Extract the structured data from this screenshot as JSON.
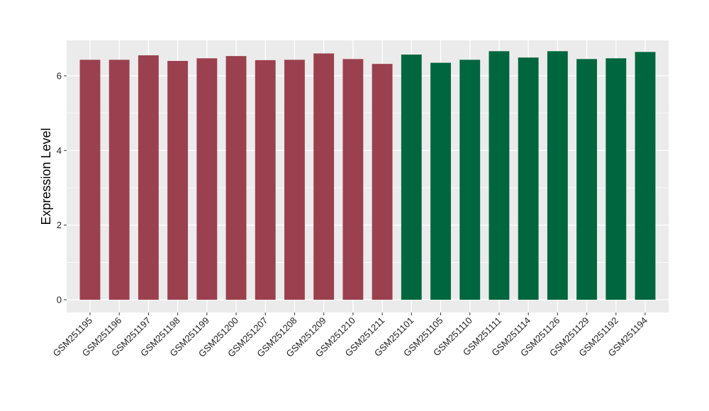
{
  "chart_data": {
    "type": "bar",
    "title": "",
    "xlabel": "",
    "ylabel": "Expression Level",
    "ylim": [
      0,
      6.95
    ],
    "yticks": [
      0,
      2,
      4,
      6
    ],
    "grid": true,
    "legend": "none",
    "categories": [
      "GSM251195",
      "GSM251196",
      "GSM251197",
      "GSM251198",
      "GSM251199",
      "GSM251200",
      "GSM251207",
      "GSM251208",
      "GSM251209",
      "GSM251210",
      "GSM251211",
      "GSM251101",
      "GSM251105",
      "GSM251110",
      "GSM251111",
      "GSM251114",
      "GSM251126",
      "GSM251129",
      "GSM251192",
      "GSM251194"
    ],
    "values": [
      6.43,
      6.43,
      6.55,
      6.4,
      6.47,
      6.53,
      6.42,
      6.43,
      6.6,
      6.45,
      6.32,
      6.57,
      6.35,
      6.43,
      6.66,
      6.49,
      6.66,
      6.45,
      6.47,
      6.64
    ],
    "groups": [
      0,
      0,
      0,
      0,
      0,
      0,
      0,
      0,
      0,
      0,
      0,
      1,
      1,
      1,
      1,
      1,
      1,
      1,
      1,
      1
    ],
    "group_colors": [
      "#9b404f",
      "#00663f"
    ],
    "panel_background": "#ebebeb",
    "gridline_color": "#ffffff"
  }
}
